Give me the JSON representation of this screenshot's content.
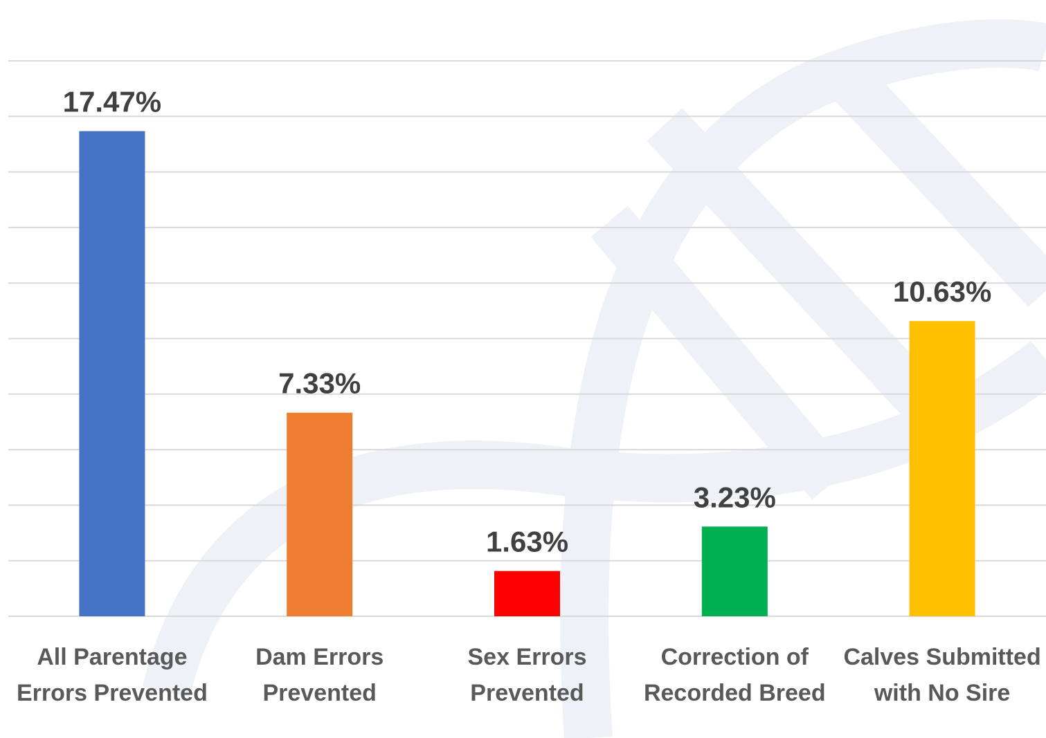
{
  "chart_data": {
    "type": "bar",
    "categories": [
      "All Parentage Errors Prevented",
      "Dam Errors Prevented",
      "Sex Errors Prevented",
      "Correction of Recorded Breed",
      "Calves Submitted with No Sire"
    ],
    "values": [
      17.47,
      7.33,
      1.63,
      3.23,
      10.63
    ],
    "value_labels": [
      "17.47%",
      "7.33%",
      "1.63%",
      "3.23%",
      "10.63%"
    ],
    "colors": [
      "#4472c4",
      "#ed7d31",
      "#ff0000",
      "#00b050",
      "#ffc000"
    ],
    "ylim": [
      0,
      20
    ],
    "yticks": [
      0,
      2,
      4,
      6,
      8,
      10,
      12,
      14,
      16,
      18,
      20
    ],
    "grid": true
  }
}
